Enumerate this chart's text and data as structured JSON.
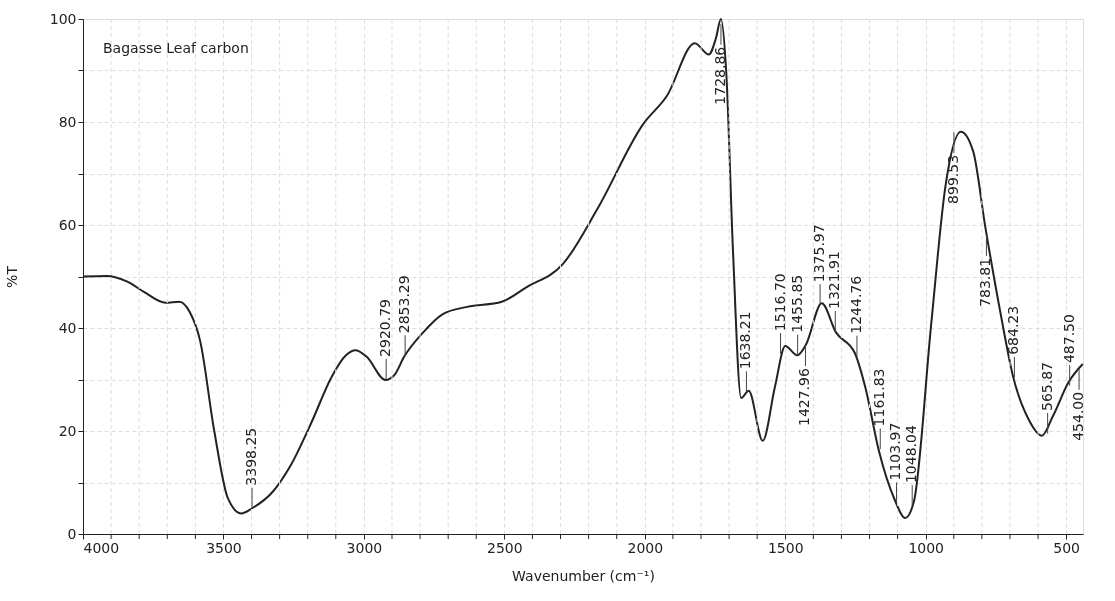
{
  "chart_data": {
    "type": "line",
    "xlabel": "Wavenumber (cm⁻¹)",
    "ylabel": "%T",
    "xlim": [
      4000,
      440
    ],
    "ylim": [
      0,
      100
    ],
    "xticks": [
      4000,
      {
        "value": 3900,
        "label": null
      },
      {
        "value": 3800,
        "label": null
      },
      {
        "value": 3700,
        "label": null
      },
      {
        "value": 3600,
        "label": null
      },
      3500,
      {
        "value": 3400,
        "label": null
      },
      {
        "value": 3300,
        "label": null
      },
      {
        "value": 3200,
        "label": null
      },
      {
        "value": 3100,
        "label": null
      },
      3000,
      {
        "value": 2900,
        "label": null
      },
      {
        "value": 2800,
        "label": null
      },
      {
        "value": 2700,
        "label": null
      },
      {
        "value": 2600,
        "label": null
      },
      2500,
      {
        "value": 2400,
        "label": null
      },
      {
        "value": 2300,
        "label": null
      },
      {
        "value": 2200,
        "label": null
      },
      {
        "value": 2100,
        "label": null
      },
      2000,
      {
        "value": 1900,
        "label": null
      },
      {
        "value": 1800,
        "label": null
      },
      {
        "value": 1700,
        "label": null
      },
      {
        "value": 1600,
        "label": null
      },
      1500,
      {
        "value": 1400,
        "label": null
      },
      {
        "value": 1300,
        "label": null
      },
      {
        "value": 1200,
        "label": null
      },
      {
        "value": 1100,
        "label": null
      },
      1000,
      {
        "value": 900,
        "label": null
      },
      {
        "value": 800,
        "label": null
      },
      {
        "value": 700,
        "label": null
      },
      {
        "value": 600,
        "label": null
      },
      500
    ],
    "yticks": [
      0,
      {
        "value": 10,
        "label": null
      },
      20,
      {
        "value": 30,
        "label": null
      },
      40,
      {
        "value": 50,
        "label": null
      },
      60,
      {
        "value": 70,
        "label": null
      },
      80,
      {
        "value": 90,
        "label": null
      },
      100
    ],
    "grid": true,
    "marker": "none",
    "line_style": "solid",
    "series": [
      {
        "color": "#222222",
        "x": [
          4000,
          3916,
          3842,
          3780,
          3706,
          3657,
          3620,
          3583,
          3533,
          3484,
          3437,
          3398,
          3323,
          3262,
          3188,
          3114,
          3064,
          3030,
          2990,
          2923,
          2891,
          2857,
          2793,
          2719,
          2632,
          2509,
          2422,
          2292,
          2168,
          2007,
          1921,
          1822,
          1772,
          1747,
          1729,
          1710,
          1686,
          1657,
          1630,
          1580,
          1537,
          1500,
          1457,
          1426,
          1370,
          1320,
          1252,
          1215,
          1166,
          1110,
          1073,
          1042,
          980,
          930,
          875,
          831,
          788,
          732,
          689,
          633,
          586,
          547,
          491,
          441
        ],
        "values": [
          50,
          50.1,
          49,
          46.9,
          44.9,
          45.1,
          43.1,
          37.5,
          20.1,
          6.9,
          4,
          5,
          8.3,
          13.2,
          21.5,
          30.6,
          34.7,
          35.7,
          34.4,
          29.9,
          30.9,
          34.4,
          38.9,
          42.7,
          44.1,
          45.1,
          47.9,
          52.4,
          63.2,
          79.5,
          85.1,
          95.3,
          93.1,
          96.2,
          100,
          89.6,
          54.9,
          26.4,
          27.8,
          18.1,
          28.5,
          36.5,
          34.7,
          36.8,
          44.8,
          39.2,
          35.1,
          28.5,
          16,
          6.6,
          3.1,
          6.3,
          41,
          67.4,
          78.1,
          74.3,
          59.7,
          42.4,
          30.6,
          22.2,
          19.1,
          22.9,
          29.5,
          33
        ]
      }
    ],
    "annotations": [
      "Bagasse Leaf carbon",
      {
        "text": "3398.25",
        "x": 3398.25,
        "y": 5
      },
      {
        "text": "2920.79",
        "x": 2920.79,
        "y": 30
      },
      {
        "text": "2853.29",
        "x": 2853.29,
        "y": 34.6
      },
      {
        "text": "1728.86",
        "x": 1728.86,
        "y": 99
      },
      {
        "text": "1638.21",
        "x": 1638.21,
        "y": 27.6
      },
      {
        "text": "1516.70",
        "x": 1516.7,
        "y": 35
      },
      {
        "text": "1455.85",
        "x": 1455.85,
        "y": 34.7
      },
      {
        "text": "1427.96",
        "x": 1427.96,
        "y": 36.6
      },
      {
        "text": "1375.97",
        "x": 1375.97,
        "y": 44.5
      },
      {
        "text": "1321.91",
        "x": 1321.91,
        "y": 39.3
      },
      {
        "text": "1244.76",
        "x": 1244.76,
        "y": 34.5
      },
      {
        "text": "1161.83",
        "x": 1161.83,
        "y": 16.5
      },
      {
        "text": "1103.97",
        "x": 1103.97,
        "y": 6
      },
      {
        "text": "1048.04",
        "x": 1048.04,
        "y": 5.5
      },
      {
        "text": "899.53",
        "x": 899.53,
        "y": 78
      },
      {
        "text": "783.81",
        "x": 783.81,
        "y": 58
      },
      {
        "text": "684.23",
        "x": 684.23,
        "y": 30.4
      },
      {
        "text": "565.87",
        "x": 565.87,
        "y": 19.5
      },
      {
        "text": "487.50",
        "x": 487.5,
        "y": 28.8
      },
      {
        "text": "454.00",
        "x": 454,
        "y": 32
      }
    ]
  }
}
